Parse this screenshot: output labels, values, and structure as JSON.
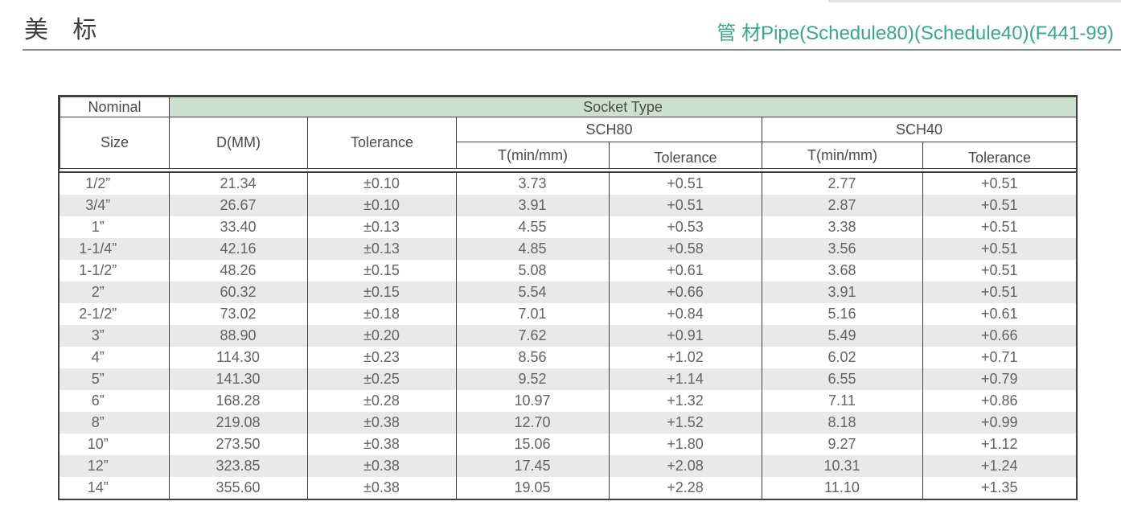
{
  "page": {
    "title": "美 标",
    "subtitle": "管 材Pipe(Schedule80)(Schedule40)(F441-99)",
    "colors": {
      "subtitle_green": "#3aa78c",
      "socket_band_green": "#cde2ce",
      "stripe_gray": "#e9e9e9",
      "border_dark": "#404040"
    }
  },
  "table": {
    "header": {
      "nominal": "Nominal",
      "size": "Size",
      "socket_type": "Socket Type",
      "d_mm": "D(MM)",
      "tolerance": "Tolerance",
      "sch80": "SCH80",
      "sch40": "SCH40",
      "t_min_mm_80": "T(min/mm)",
      "tolerance_80": "Tolerance",
      "t_min_mm_40": "T(min/mm)",
      "tolerance_40": "Tolerance"
    },
    "rows": [
      {
        "size": "1/2”",
        "d": "21.34",
        "tol": "±0.10",
        "t80": "3.73",
        "tol80": "+0.51",
        "t40": "2.77",
        "tol40": "+0.51"
      },
      {
        "size": "3/4”",
        "d": "26.67",
        "tol": "±0.10",
        "t80": "3.91",
        "tol80": "+0.51",
        "t40": "2.87",
        "tol40": "+0.51"
      },
      {
        "size": "1”",
        "d": "33.40",
        "tol": "±0.13",
        "t80": "4.55",
        "tol80": "+0.53",
        "t40": "3.38",
        "tol40": "+0.51"
      },
      {
        "size": "1-1/4”",
        "d": "42.16",
        "tol": "±0.13",
        "t80": "4.85",
        "tol80": "+0.58",
        "t40": "3.56",
        "tol40": "+0.51"
      },
      {
        "size": "1-1/2”",
        "d": "48.26",
        "tol": "±0.15",
        "t80": "5.08",
        "tol80": "+0.61",
        "t40": "3.68",
        "tol40": "+0.51"
      },
      {
        "size": "2”",
        "d": "60.32",
        "tol": "±0.15",
        "t80": "5.54",
        "tol80": "+0.66",
        "t40": "3.91",
        "tol40": "+0.51"
      },
      {
        "size": "2-1/2”",
        "d": "73.02",
        "tol": "±0.18",
        "t80": "7.01",
        "tol80": "+0.84",
        "t40": "5.16",
        "tol40": "+0.61"
      },
      {
        "size": "3”",
        "d": "88.90",
        "tol": "±0.20",
        "t80": "7.62",
        "tol80": "+0.91",
        "t40": "5.49",
        "tol40": "+0.66"
      },
      {
        "size": "4”",
        "d": "114.30",
        "tol": "±0.23",
        "t80": "8.56",
        "tol80": "+1.02",
        "t40": "6.02",
        "tol40": "+0.71"
      },
      {
        "size": "5”",
        "d": "141.30",
        "tol": "±0.25",
        "t80": "9.52",
        "tol80": "+1.14",
        "t40": "6.55",
        "tol40": "+0.79"
      },
      {
        "size": "6”",
        "d": "168.28",
        "tol": "±0.28",
        "t80": "10.97",
        "tol80": "+1.32",
        "t40": "7.11",
        "tol40": "+0.86"
      },
      {
        "size": "8”",
        "d": "219.08",
        "tol": "±0.38",
        "t80": "12.70",
        "tol80": "+1.52",
        "t40": "8.18",
        "tol40": "+0.99"
      },
      {
        "size": "10”",
        "d": "273.50",
        "tol": "±0.38",
        "t80": "15.06",
        "tol80": "+1.80",
        "t40": "9.27",
        "tol40": "+1.12"
      },
      {
        "size": "12”",
        "d": "323.85",
        "tol": "±0.38",
        "t80": "17.45",
        "tol80": "+2.08",
        "t40": "10.31",
        "tol40": "+1.24"
      },
      {
        "size": "14”",
        "d": "355.60",
        "tol": "±0.38",
        "t80": "19.05",
        "tol80": "+2.28",
        "t40": "11.10",
        "tol40": "+1.35"
      }
    ]
  }
}
